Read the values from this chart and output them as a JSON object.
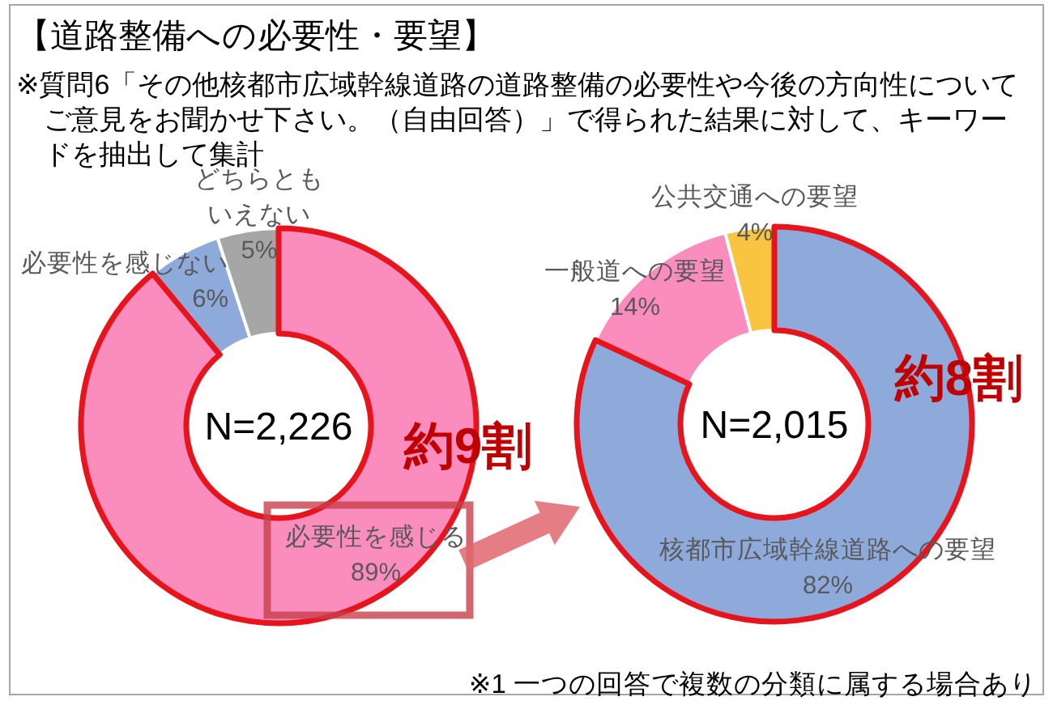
{
  "chart_data": [
    {
      "type": "donut",
      "title": "【道路整備への必要性・要望】",
      "subtitle": "※質問6「その他核都市広域幹線道路の道路整備の必要性や今後の方向性についてご意見をお聞かせ下さい。（自由回答）」で得られた結果に対して、キーワードを抽出して集計",
      "categories": [
        "必要性を感じる",
        "必要性を感じない",
        "どちらともいえない"
      ],
      "values": [
        89,
        6,
        5
      ],
      "value_labels": [
        "89%",
        "6%",
        "5%"
      ],
      "colors": [
        "#fa8cbe",
        "#8eaadb",
        "#a6a6a6"
      ],
      "annotations": [
        "N=2,226",
        "約9割"
      ]
    },
    {
      "type": "donut",
      "categories": [
        "核都市広域幹線道路への要望",
        "一般道への要望",
        "公共交通への要望"
      ],
      "values": [
        82,
        14,
        4
      ],
      "value_labels": [
        "82%",
        "14%",
        "4%"
      ],
      "colors": [
        "#8eaadb",
        "#fa8cbe",
        "#f9c440"
      ],
      "annotations": [
        "N=2,015",
        "約8割",
        "※1 一つの回答で複数の分類に属する場合あり"
      ]
    }
  ]
}
